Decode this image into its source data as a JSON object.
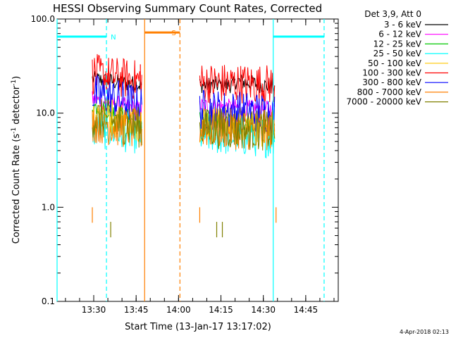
{
  "chart_data": {
    "type": "line",
    "title": "HESSI Observing Summary Count Rates, Corrected",
    "xlabel": "Start Time (13-Jan-17 13:17:02)",
    "ylabel": "Corrected Count Rate (s-1 detector-1)",
    "ylabel_parts": {
      "pre": "Corrected Count Rate (s",
      "sup1": "-1",
      "mid": " detector",
      "sup2": "-1",
      "post": ")"
    },
    "y_scale": "log",
    "ylim": [
      0.1,
      100.0
    ],
    "y_ticks": [
      {
        "value": 0.1,
        "label": "0.1"
      },
      {
        "value": 1.0,
        "label": "1.0"
      },
      {
        "value": 10.0,
        "label": "10.0"
      },
      {
        "value": 100.0,
        "label": "100.0"
      }
    ],
    "xlim": [
      "13:17:02",
      "14:56:30"
    ],
    "x_ticks": [
      {
        "time": "13:30",
        "label": "13:30"
      },
      {
        "time": "13:45",
        "label": "13:45"
      },
      {
        "time": "14:00",
        "label": "14:00"
      },
      {
        "time": "14:15",
        "label": "14:15"
      },
      {
        "time": "14:30",
        "label": "14:30"
      },
      {
        "time": "14:45",
        "label": "14:45"
      }
    ],
    "legend": {
      "title": "Det 3,9, Att 0",
      "placement": "right-outside"
    },
    "series": [
      {
        "name": "3 - 6 keV",
        "color": "#000000",
        "segments": [
          {
            "start": "13:29:30",
            "end": "13:39:45",
            "level_start": 23,
            "level_end": 21
          },
          {
            "start": "13:40:00",
            "end": "13:47:00",
            "level_start": 21,
            "level_end": 20
          },
          {
            "start": "14:07:30",
            "end": "14:20:00",
            "level_start": 20,
            "level_end": 20
          },
          {
            "start": "14:20:00",
            "end": "14:34:00",
            "level_start": 22,
            "level_end": 19
          }
        ]
      },
      {
        "name": "6 - 12 keV",
        "color": "#ff00ff",
        "segments": [
          {
            "start": "13:29:30",
            "end": "13:47:00",
            "level_start": 14,
            "level_end": 11
          },
          {
            "start": "14:07:30",
            "end": "14:34:00",
            "level_start": 12,
            "level_end": 11
          }
        ]
      },
      {
        "name": "12 - 25 keV",
        "color": "#00c800",
        "segments": [
          {
            "start": "13:29:30",
            "end": "13:47:00",
            "level_start": 12,
            "level_end": 8
          },
          {
            "start": "14:07:30",
            "end": "14:34:00",
            "level_start": 9,
            "level_end": 7
          }
        ]
      },
      {
        "name": "25 - 50 keV",
        "color": "#00ffff",
        "segments": [
          {
            "start": "13:29:30",
            "end": "13:47:00",
            "level_start": 7,
            "level_end": 6
          },
          {
            "start": "14:07:30",
            "end": "14:34:00",
            "level_start": 6,
            "level_end": 5.5
          }
        ]
      },
      {
        "name": "50 - 100 keV",
        "color": "#ffc800",
        "segments": [
          {
            "start": "13:29:30",
            "end": "13:47:00",
            "level_start": 10,
            "level_end": 8
          },
          {
            "start": "14:07:30",
            "end": "14:34:00",
            "level_start": 8,
            "level_end": 7
          }
        ]
      },
      {
        "name": "100 - 300 keV",
        "color": "#ff0000",
        "segments": [
          {
            "start": "13:29:30",
            "end": "13:47:00",
            "level_start": 26,
            "level_end": 22
          },
          {
            "start": "14:07:30",
            "end": "14:34:00",
            "level_start": 21,
            "level_end": 20
          }
        ]
      },
      {
        "name": "300 - 800 keV",
        "color": "#0000ff",
        "segments": [
          {
            "start": "13:29:30",
            "end": "13:47:00",
            "level_start": 16,
            "level_end": 12
          },
          {
            "start": "14:07:30",
            "end": "14:34:00",
            "level_start": 11,
            "level_end": 10
          }
        ]
      },
      {
        "name": "800 - 7000 keV",
        "color": "#ff7f00",
        "segments": [
          {
            "start": "13:29:30",
            "end": "13:47:00",
            "level_start": 8,
            "level_end": 6.5
          },
          {
            "start": "14:07:30",
            "end": "14:34:00",
            "level_start": 7,
            "level_end": 6.5
          }
        ]
      },
      {
        "name": "7000 - 20000 keV",
        "color": "#808000",
        "segments": [
          {
            "start": "13:29:30",
            "end": "13:47:00",
            "level_start": 9,
            "level_end": 7
          },
          {
            "start": "14:07:30",
            "end": "14:34:00",
            "level_start": 7,
            "level_end": 6.5
          }
        ]
      }
    ],
    "spikes": [
      {
        "time": "13:46:30",
        "value": 33,
        "color": "#ff0000"
      },
      {
        "time": "13:29:30",
        "value": 1.0,
        "color": "#ff7f00"
      },
      {
        "time": "14:34:30",
        "value": 1.0,
        "color": "#ff7f00"
      },
      {
        "time": "14:07:30",
        "value": 1.0,
        "color": "#ff7f00"
      },
      {
        "time": "13:36:00",
        "value": 0.7,
        "color": "#808000"
      },
      {
        "time": "14:13:30",
        "value": 0.7,
        "color": "#808000"
      },
      {
        "time": "14:15:30",
        "value": 0.7,
        "color": "#808000"
      }
    ],
    "markers": [
      {
        "label": "N",
        "color": "#00ffff",
        "y": 65,
        "segments": [
          [
            "13:17:02",
            "13:34:30"
          ],
          [
            "14:33:30",
            "14:51:30"
          ]
        ],
        "solid_lines": [
          "13:17:02",
          "14:33:30"
        ],
        "dashed_lines": [
          "13:34:30",
          "14:51:30"
        ]
      },
      {
        "label": "S",
        "color": "#ff7f00",
        "y": 72,
        "segments": [
          [
            "13:48:00",
            "14:00:30"
          ]
        ],
        "solid_lines": [
          "13:48:00"
        ],
        "dashed_lines": [
          "14:00:30"
        ]
      }
    ]
  },
  "footer": {
    "timestamp": "4-Apr-2018 02:13"
  }
}
